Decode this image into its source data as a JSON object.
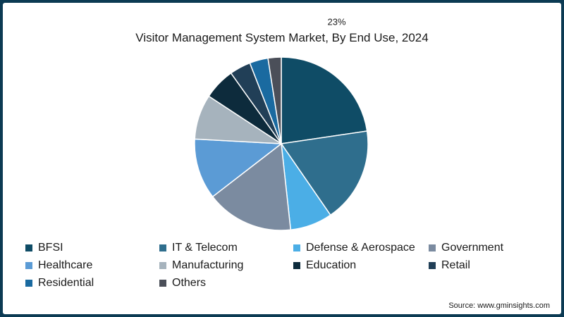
{
  "chart_data": {
    "type": "pie",
    "title": "Visitor Management System Market, By End Use, 2024",
    "slices": [
      {
        "label": "BFSI",
        "value": 23,
        "color": "#0f4c66"
      },
      {
        "label": "IT & Telecom",
        "value": 18,
        "color": "#2f6e8d"
      },
      {
        "label": "Defense & Aerospace",
        "value": 8,
        "color": "#4baee6"
      },
      {
        "label": "Government",
        "value": 16.5,
        "color": "#7b8ba0"
      },
      {
        "label": "Healthcare",
        "value": 11.5,
        "color": "#5b9bd5"
      },
      {
        "label": "Manufacturing",
        "value": 8.5,
        "color": "#a6b3bd"
      },
      {
        "label": "Education",
        "value": 6,
        "color": "#0d2b3c"
      },
      {
        "label": "Retail",
        "value": 4,
        "color": "#213f57"
      },
      {
        "label": "Residential",
        "value": 3.5,
        "color": "#1a6aa0"
      },
      {
        "label": "Others",
        "value": 2.5,
        "color": "#4b4f59"
      }
    ],
    "data_labels": [
      {
        "slice": "BFSI",
        "text": "23%"
      }
    ],
    "legend_position": "bottom"
  },
  "source": "Source: www.gminsights.com"
}
